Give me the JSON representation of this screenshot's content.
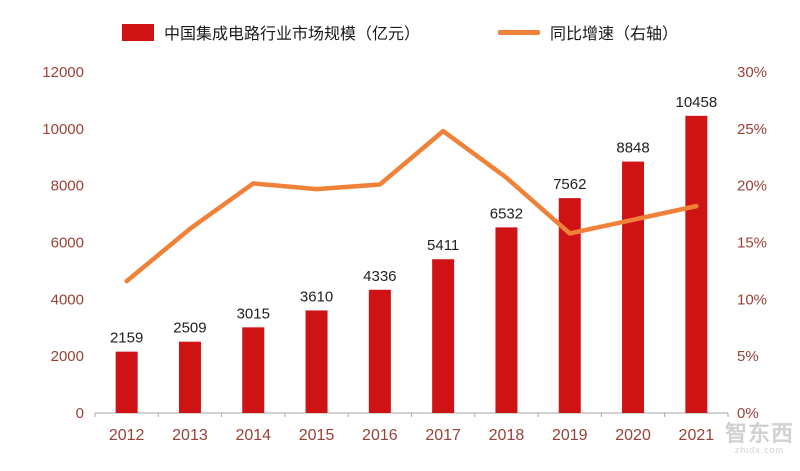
{
  "legend": {
    "bar_label": "中国集成电路行业市场规模（亿元）",
    "line_label": "同比增速（右轴）"
  },
  "watermark": {
    "cn": "智东西",
    "en": "zhidx.com"
  },
  "colors": {
    "bar": "#cf1314",
    "line": "#f08138",
    "axis_text": "#9a4238",
    "axis_line": "#a6a6a6",
    "value_label": "#1f1f1f"
  },
  "chart_data": {
    "type": "bar",
    "categories": [
      "2012",
      "2013",
      "2014",
      "2015",
      "2016",
      "2017",
      "2018",
      "2019",
      "2020",
      "2021"
    ],
    "series": [
      {
        "name": "中国集成电路行业市场规模（亿元）",
        "kind": "bar",
        "axis": "left",
        "values": [
          2159,
          2509,
          3015,
          3610,
          4336,
          5411,
          6532,
          7562,
          8848,
          10458
        ]
      },
      {
        "name": "同比增速（右轴）",
        "kind": "line",
        "axis": "right",
        "values": [
          11.6,
          16.2,
          20.2,
          19.7,
          20.1,
          24.8,
          20.7,
          15.8,
          17.0,
          18.2
        ]
      }
    ],
    "left_axis": {
      "min": 0,
      "max": 12000,
      "step": 2000
    },
    "right_axis": {
      "min": 0,
      "max": 30,
      "step": 5,
      "suffix": "%"
    },
    "grid": false,
    "legend_position": "top",
    "title": ""
  }
}
